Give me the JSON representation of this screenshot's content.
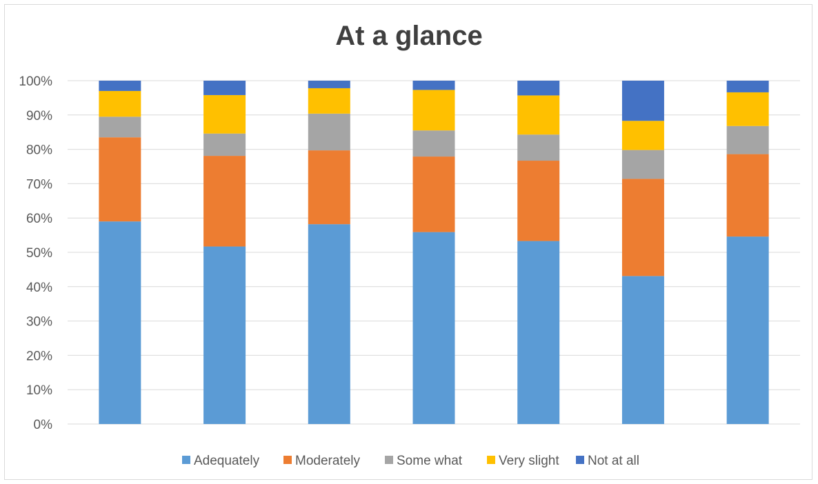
{
  "chart_data": {
    "type": "bar",
    "stacked": "percent",
    "title": "At a glance",
    "xlabel": "",
    "ylabel": "",
    "ylim": [
      0,
      100
    ],
    "yticks": [
      "0%",
      "10%",
      "20%",
      "30%",
      "40%",
      "50%",
      "60%",
      "70%",
      "80%",
      "90%",
      "100%"
    ],
    "grid": true,
    "legend": "bottom",
    "categories": [
      "",
      "",
      "",
      "",
      "",
      "",
      ""
    ],
    "series": [
      {
        "name": "Adequately",
        "color": "#5b9bd5",
        "values": [
          59,
          51.7,
          58.2,
          55.9,
          53.3,
          43.1,
          54.6
        ]
      },
      {
        "name": "Moderately",
        "color": "#ed7d31",
        "values": [
          24.5,
          26.4,
          21.5,
          22,
          23.4,
          28.3,
          24
        ]
      },
      {
        "name": "Some what",
        "color": "#a5a5a5",
        "values": [
          6,
          6.5,
          10.7,
          7.6,
          7.6,
          8.4,
          8.2
        ]
      },
      {
        "name": "Very slight",
        "color": "#ffc000",
        "values": [
          7.5,
          11.2,
          7.4,
          11.8,
          11.4,
          8.5,
          9.8
        ]
      },
      {
        "name": "Not at all",
        "color": "#4472c4",
        "values": [
          3,
          4.2,
          2.2,
          2.7,
          4.3,
          11.7,
          3.4
        ]
      }
    ]
  }
}
